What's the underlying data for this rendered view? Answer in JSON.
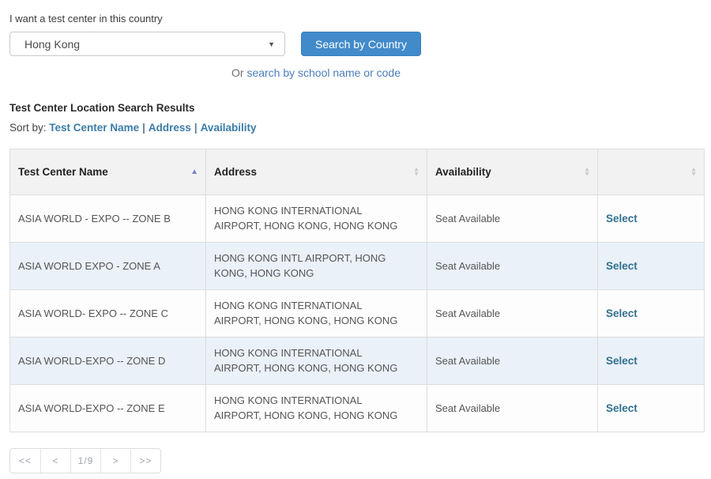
{
  "search": {
    "label": "I want a test center in this country",
    "country_value": "Hong Kong",
    "button_label": "Search by Country",
    "alt_prefix": "Or ",
    "alt_link_label": "search by school name or code"
  },
  "results": {
    "title": "Test Center Location Search Results",
    "sort_by_label": "Sort by:",
    "sort_links": [
      "Test Center Name",
      "Address",
      "Availability"
    ],
    "sort_separator": "|"
  },
  "table": {
    "columns": [
      {
        "label": "Test Center Name",
        "sort": "asc"
      },
      {
        "label": "Address",
        "sort": "none"
      },
      {
        "label": "Availability",
        "sort": "none"
      },
      {
        "label": "",
        "sort": "none"
      }
    ],
    "select_label": "Select",
    "rows": [
      {
        "name": "ASIA WORLD - EXPO -- ZONE B",
        "address": "HONG KONG INTERNATIONAL AIRPORT, HONG KONG, HONG KONG",
        "availability": "Seat Available"
      },
      {
        "name": "ASIA WORLD EXPO - ZONE A",
        "address": "HONG KONG INTL AIRPORT, HONG KONG, HONG KONG",
        "availability": "Seat Available"
      },
      {
        "name": "ASIA WORLD- EXPO -- ZONE C",
        "address": "HONG KONG INTERNATIONAL AIRPORT, HONG KONG, HONG KONG",
        "availability": "Seat Available"
      },
      {
        "name": "ASIA WORLD-EXPO -- ZONE D",
        "address": "HONG KONG INTERNATIONAL AIRPORT, HONG KONG, HONG KONG",
        "availability": "Seat Available"
      },
      {
        "name": "ASIA WORLD-EXPO -- ZONE E",
        "address": "HONG KONG INTERNATIONAL AIRPORT, HONG KONG, HONG KONG",
        "availability": "Seat Available"
      }
    ]
  },
  "pagination": {
    "first": "<<",
    "prev": "<",
    "page_indicator": "1/9",
    "next": ">",
    "last": ">>"
  },
  "colors": {
    "button_bg": "#428bca",
    "sort_link_blue": "#3a7ca8",
    "select_link_blue": "#31708f",
    "active_sort_arrow": "#7b80cc",
    "alt_row_bg": "#eaf1f9",
    "header_bg": "#f2f2f2"
  },
  "icons": {
    "dropdown_caret": "▼",
    "sort_up": "▲",
    "sort_down": "▼"
  }
}
